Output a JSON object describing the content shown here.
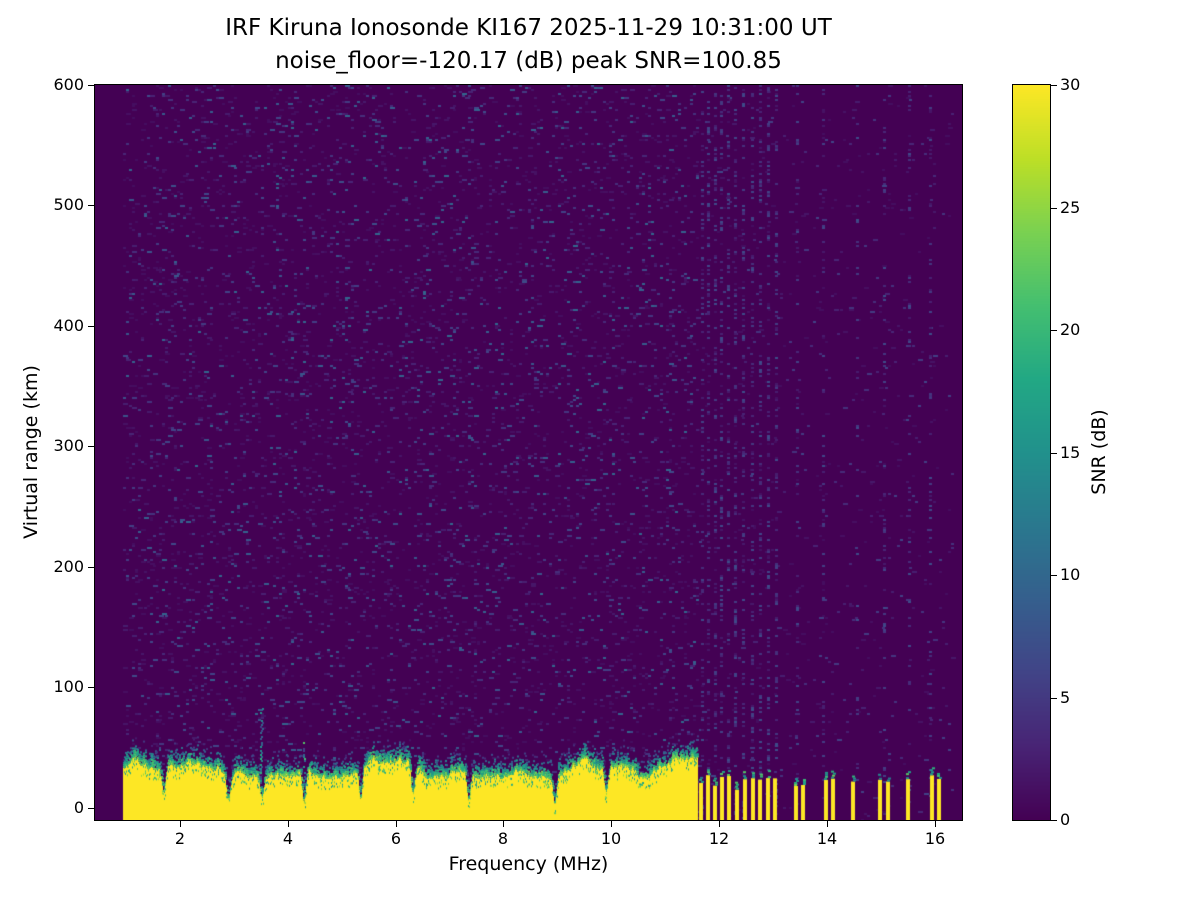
{
  "figure": {
    "title_line1": "IRF Kiruna Ionosonde KI167 2025-11-29 10:31:00  UT",
    "title_line2": "noise_floor=-120.17 (dB) peak SNR=100.85"
  },
  "chart_data": {
    "type": "heatmap",
    "title": "IRF Kiruna Ionosonde KI167 2025-11-29 10:31:00 UT / noise_floor=-120.17 (dB) peak SNR=100.85",
    "station": "IRF Kiruna Ionosonde KI167",
    "timestamp_ut": "2025-11-29 10:31:00",
    "noise_floor_db": -120.17,
    "peak_snr_db": 100.85,
    "xlabel": "Frequency (MHz)",
    "ylabel": "Virtual range (km)",
    "xlim": [
      0.43,
      16.5
    ],
    "ylim": [
      -10,
      600
    ],
    "xticks": [
      2,
      4,
      6,
      8,
      10,
      12,
      14,
      16
    ],
    "yticks": [
      0,
      100,
      200,
      300,
      400,
      500,
      600
    ],
    "colorbar": {
      "label": "SNR (dB)",
      "min": 0,
      "max": 30,
      "ticks": [
        0,
        5,
        10,
        15,
        20,
        25,
        30
      ],
      "colormap": "viridis",
      "orientation": "vertical"
    },
    "data_extent_mhz": [
      0.95,
      16.35
    ],
    "background_snr_db": 0,
    "features": {
      "noise_speckle": {
        "region_mhz": [
          0.95,
          11.62
        ],
        "density": 0.08,
        "snr_db": [
          1,
          10
        ]
      },
      "sparse_speckle": {
        "region_mhz": [
          11.62,
          16.35
        ],
        "density": 0.02,
        "snr_db": [
          1,
          6
        ]
      },
      "interference_columns_mhz": [
        11.68,
        11.8,
        11.92,
        12.04,
        12.16,
        12.3,
        12.45,
        12.6,
        12.75,
        12.9,
        13.05,
        13.45,
        13.92,
        14.55,
        15.05,
        15.52,
        15.9
      ],
      "ground_echo_band": {
        "freq_range_mhz": [
          0.95,
          11.58
        ],
        "base_top_km": 33,
        "top_km_jitter": 9,
        "snr_db": 30,
        "notch_freqs_mhz": [
          1.7,
          2.9,
          3.52,
          4.3,
          5.35,
          6.32,
          7.35,
          8.95,
          9.9
        ]
      },
      "spikes": [
        {
          "freq_mhz": 3.5,
          "top_km": 85
        },
        {
          "freq_mhz": 4.3,
          "top_km": 58
        }
      ],
      "broken_band_bars_mhz": [
        11.66,
        11.79,
        11.92,
        12.05,
        12.18,
        12.33,
        12.47,
        12.62,
        12.76,
        12.9,
        13.04,
        13.42,
        13.56,
        13.98,
        14.1,
        14.48,
        14.98,
        15.12,
        15.5,
        15.94,
        16.08
      ],
      "bar_top_km_range": [
        14,
        28
      ]
    }
  }
}
